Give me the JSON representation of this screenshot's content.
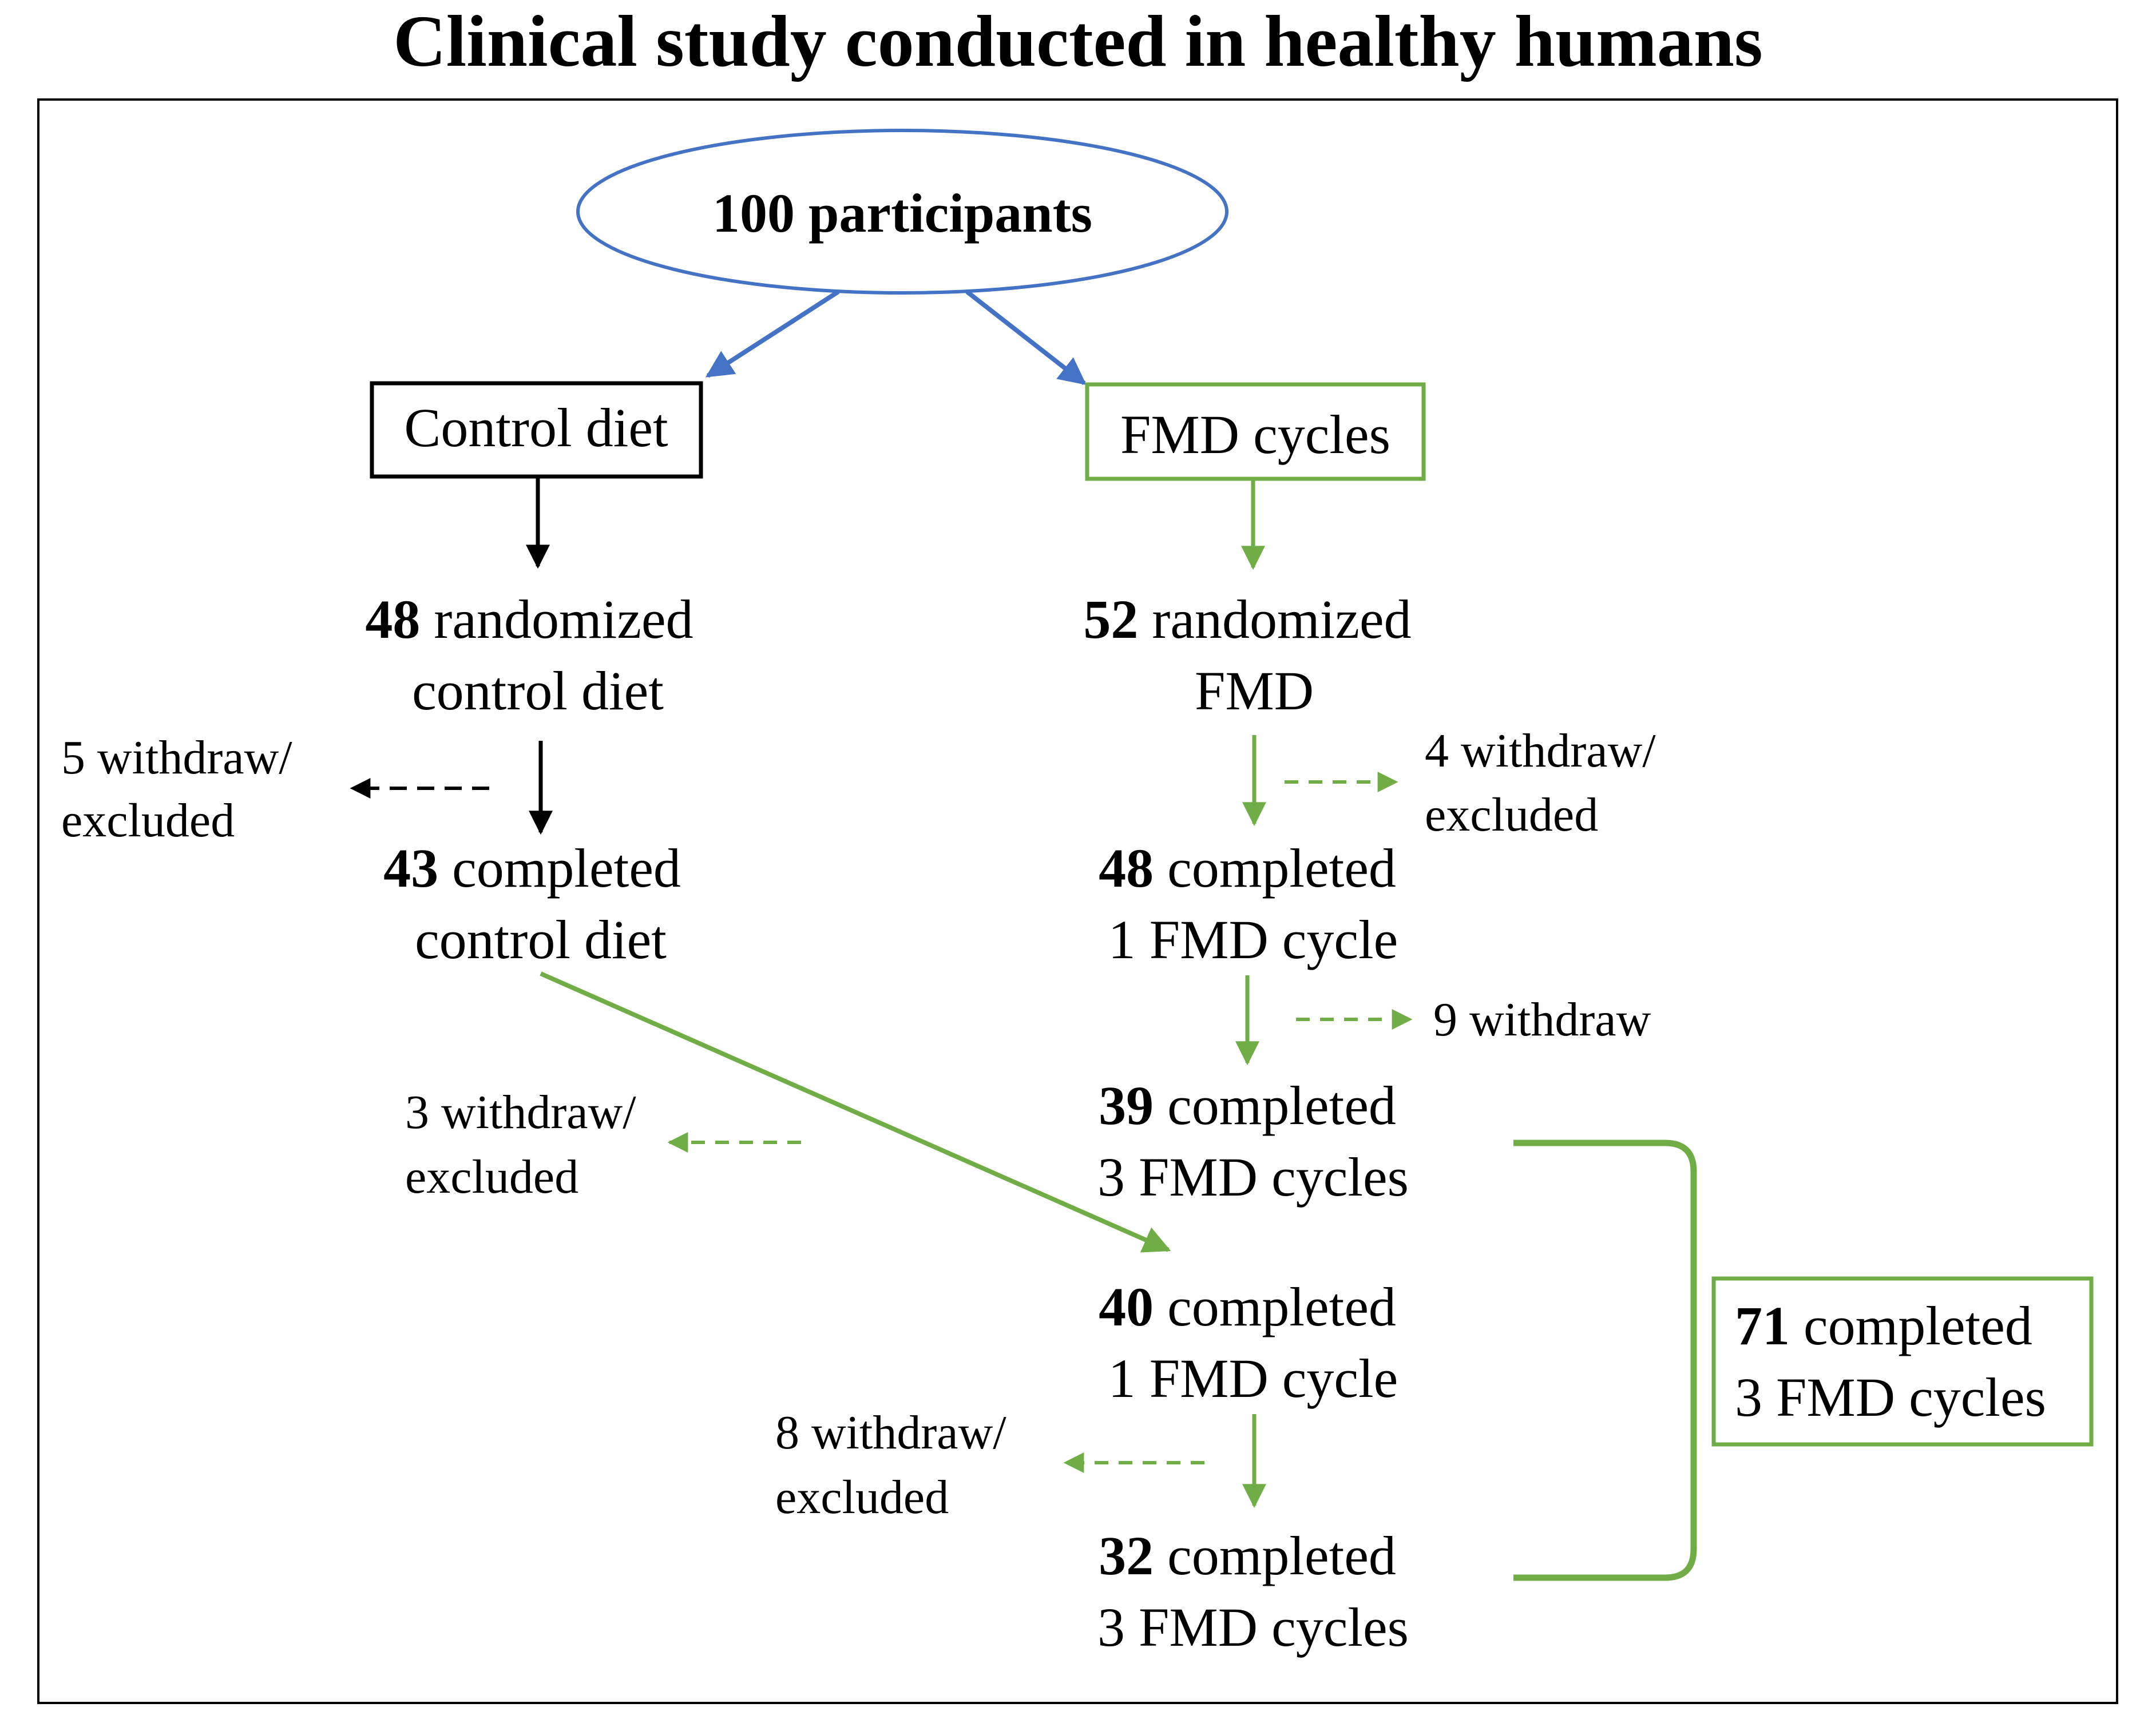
{
  "title": "Clinical study conducted in healthy humans",
  "colors": {
    "blue": "#4472C4",
    "green": "#70AD47",
    "black": "#000000"
  },
  "participants": "100 participants",
  "control_box": "Control diet",
  "fmd_box": "FMD cycles",
  "left": {
    "randomized": {
      "count": "48",
      "text": " randomized",
      "line2": "control diet"
    },
    "withdraw1": {
      "line1": "5 withdraw/",
      "line2": "excluded"
    },
    "completed": {
      "count": "43",
      "text": " completed",
      "line2": "control diet"
    }
  },
  "right": {
    "randomized": {
      "count": "52",
      "text": " randomized",
      "line2": "FMD"
    },
    "withdraw1": {
      "line1": "4 withdraw/",
      "line2": "excluded"
    },
    "completed1": {
      "count": "48",
      "text": " completed",
      "line2": "1 FMD cycle"
    },
    "withdraw2": {
      "line1": "9 withdraw"
    },
    "completed3": {
      "count": "39",
      "text": " completed",
      "line2": "3 FMD cycles"
    }
  },
  "crossover": {
    "withdraw": {
      "line1": "3 withdraw/",
      "line2": "excluded"
    },
    "completed1": {
      "count": "40",
      "text": " completed",
      "line2": "1 FMD cycle"
    },
    "withdraw2": {
      "line1": "8 withdraw/",
      "line2": "excluded"
    },
    "completed3": {
      "count": "32",
      "text": " completed",
      "line2": "3 FMD cycles"
    }
  },
  "total": {
    "count": "71",
    "text": " completed",
    "line2": "3 FMD cycles"
  }
}
